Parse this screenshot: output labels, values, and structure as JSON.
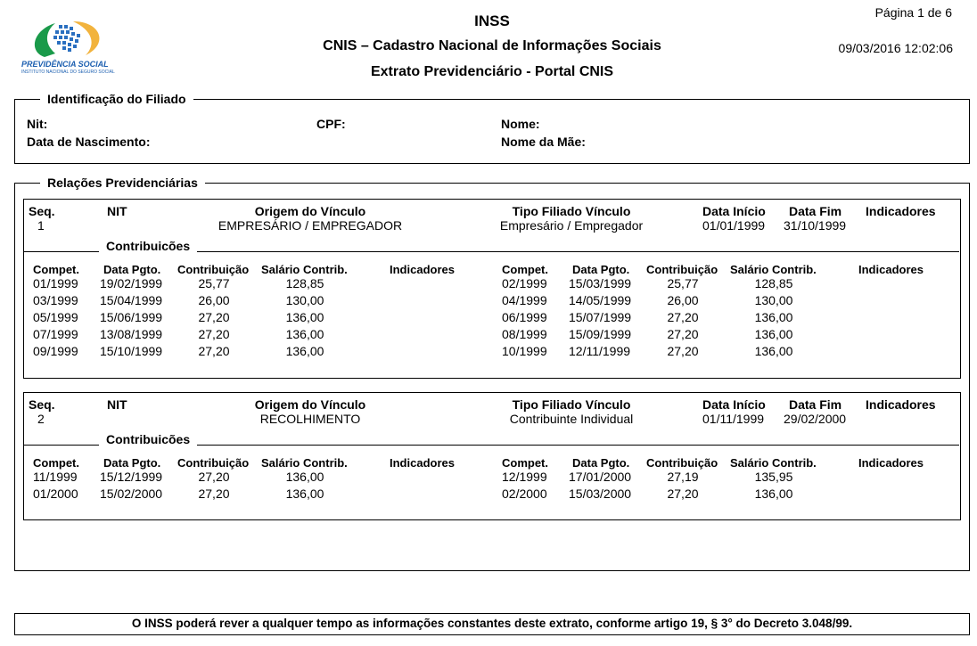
{
  "header": {
    "logo_text": "PREVIDÊNCIA SOCIAL",
    "logo_subtext": "INSTITUTO NACIONAL DO SEGURO SOCIAL",
    "title": "INSS",
    "subtitle": "CNIS – Cadastro Nacional de Informações Sociais",
    "subtitle2": "Extrato Previdenciário - Portal CNIS",
    "page": "Página 1 de 6",
    "datetime": "09/03/2016 12:02:06"
  },
  "filiado": {
    "legend": "Identificação do Filiado",
    "nit_label": "Nit:",
    "cpf_label": "CPF:",
    "nome_label": "Nome:",
    "nascimento_label": "Data de Nascimento:",
    "mae_label": "Nome da Mãe:"
  },
  "relacoes": {
    "legend": "Relações Previdenciárias",
    "headers": {
      "seq": "Seq.",
      "nit": "NIT",
      "origem": "Origem do Vínculo",
      "tipo": "Tipo Filiado Vínculo",
      "inicio": "Data Início",
      "fim": "Data Fim",
      "indicadores": "Indicadores"
    },
    "contrib_legend": "Contribuicões",
    "contrib_headers": {
      "compet": "Compet.",
      "data": "Data Pgto.",
      "contribuicao": "Contribuição",
      "salario": "Salário Contrib.",
      "indicadores": "Indicadores"
    },
    "vinculos": [
      {
        "seq": "1",
        "nit": "",
        "origem": "EMPRESÁRIO / EMPREGADOR",
        "tipo": "Empresário / Empregador",
        "inicio": "01/01/1999",
        "fim": "31/10/1999",
        "left": [
          [
            "01/1999",
            "19/02/1999",
            "25,77",
            "128,85"
          ],
          [
            "03/1999",
            "15/04/1999",
            "26,00",
            "130,00"
          ],
          [
            "05/1999",
            "15/06/1999",
            "27,20",
            "136,00"
          ],
          [
            "07/1999",
            "13/08/1999",
            "27,20",
            "136,00"
          ],
          [
            "09/1999",
            "15/10/1999",
            "27,20",
            "136,00"
          ]
        ],
        "right": [
          [
            "02/1999",
            "15/03/1999",
            "25,77",
            "128,85"
          ],
          [
            "04/1999",
            "14/05/1999",
            "26,00",
            "130,00"
          ],
          [
            "06/1999",
            "15/07/1999",
            "27,20",
            "136,00"
          ],
          [
            "08/1999",
            "15/09/1999",
            "27,20",
            "136,00"
          ],
          [
            "10/1999",
            "12/11/1999",
            "27,20",
            "136,00"
          ]
        ]
      },
      {
        "seq": "2",
        "nit": "",
        "origem": "RECOLHIMENTO",
        "tipo": "Contribuinte Individual",
        "inicio": "01/11/1999",
        "fim": "29/02/2000",
        "left": [
          [
            "11/1999",
            "15/12/1999",
            "27,20",
            "136,00"
          ],
          [
            "01/2000",
            "15/02/2000",
            "27,20",
            "136,00"
          ]
        ],
        "right": [
          [
            "12/1999",
            "17/01/2000",
            "27,19",
            "135,95"
          ],
          [
            "02/2000",
            "15/03/2000",
            "27,20",
            "136,00"
          ]
        ]
      }
    ]
  },
  "footer": {
    "text": "O INSS poderá rever a qualquer tempo as informações constantes deste extrato, conforme artigo 19, § 3° do Decreto 3.048/99."
  }
}
